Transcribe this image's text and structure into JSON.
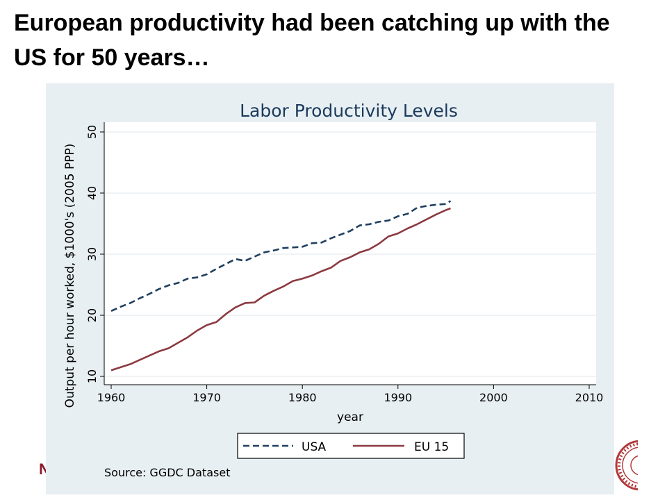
{
  "slide": {
    "title": "European productivity had been catching up with the US for 50 years…",
    "footer_letter": "N"
  },
  "colors": {
    "usa": "#1f3f5f",
    "eu15": "#8b3a40",
    "panel": "#e8eff3",
    "plot": "#ffffff",
    "seal": "#b03a3a"
  },
  "chart_data": {
    "type": "line",
    "title": "Labor Productivity Levels",
    "xlabel": "year",
    "ylabel": "Output per hour worked, $1000's (2005 PPP)",
    "xlim": [
      1960,
      2010
    ],
    "ylim": [
      10,
      50
    ],
    "xticks": [
      1960,
      1970,
      1980,
      1990,
      2000,
      2010
    ],
    "yticks": [
      10,
      20,
      30,
      40,
      50
    ],
    "grid": true,
    "legend": "bottom",
    "note": "Source: GGDC Dataset",
    "x": [
      1960,
      1961,
      1962,
      1963,
      1964,
      1965,
      1966,
      1967,
      1968,
      1969,
      1970,
      1971,
      1972,
      1973,
      1974,
      1975,
      1976,
      1977,
      1978,
      1979,
      1980,
      1981,
      1982,
      1983,
      1984,
      1985,
      1986,
      1987,
      1988,
      1989,
      1990,
      1991,
      1992,
      1993,
      1994,
      1995,
      1995.5
    ],
    "series": [
      {
        "name": "USA",
        "style": "dashed",
        "values": [
          20.7,
          21.4,
          22.0,
          22.8,
          23.5,
          24.3,
          24.9,
          25.3,
          26.0,
          26.2,
          26.7,
          27.6,
          28.4,
          29.2,
          28.9,
          29.6,
          30.3,
          30.6,
          31.0,
          31.1,
          31.2,
          31.8,
          31.9,
          32.6,
          33.2,
          33.8,
          34.7,
          34.9,
          35.3,
          35.5,
          36.2,
          36.6,
          37.6,
          37.9,
          38.1,
          38.2,
          38.7
        ]
      },
      {
        "name": "EU 15",
        "style": "solid",
        "values": [
          11.0,
          11.5,
          12.0,
          12.7,
          13.4,
          14.1,
          14.6,
          15.5,
          16.4,
          17.5,
          18.4,
          18.9,
          20.2,
          21.3,
          22.0,
          22.1,
          23.2,
          24.0,
          24.7,
          25.6,
          26.0,
          26.5,
          27.2,
          27.8,
          28.9,
          29.5,
          30.3,
          30.8,
          31.7,
          32.9,
          33.4,
          34.2,
          34.9,
          35.7,
          36.5,
          37.2,
          37.5
        ]
      }
    ]
  }
}
